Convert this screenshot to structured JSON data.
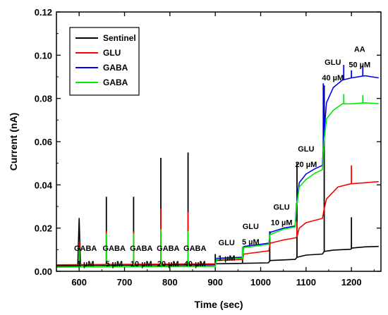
{
  "chart_data": {
    "type": "line",
    "xlabel": "Time (sec)",
    "ylabel": "Current (nA)",
    "xlim": [
      550,
      1265
    ],
    "ylim": [
      0.0,
      0.12
    ],
    "x_ticks": [
      600,
      700,
      800,
      900,
      1000,
      1100,
      1200
    ],
    "y_ticks": [
      0.0,
      0.02,
      0.04,
      0.06,
      0.08,
      0.1,
      0.12
    ],
    "y_tick_labels": [
      "0.00",
      "0.02",
      "0.04",
      "0.06",
      "0.08",
      "0.10",
      "0.12"
    ],
    "legend_position": "top-left",
    "series": [
      {
        "name": "Sentinel",
        "color": "#000000",
        "x": [
          550,
          597,
          600,
          603,
          660,
          720,
          780,
          840,
          898,
          902,
          960,
          1017,
          1021,
          1076,
          1080,
          1100,
          1136,
          1140,
          1160,
          1198,
          1202,
          1230,
          1260
        ],
        "y": [
          0.0025,
          0.0025,
          0.0245,
          0.0028,
          0.0028,
          0.0029,
          0.003,
          0.003,
          0.0031,
          0.0035,
          0.0037,
          0.0039,
          0.005,
          0.0055,
          0.0065,
          0.0075,
          0.008,
          0.0092,
          0.0098,
          0.0102,
          0.0108,
          0.0113,
          0.0115
        ],
        "spikes": [
          {
            "x": 600,
            "y": 0.0245
          },
          {
            "x": 660,
            "y": 0.0345
          },
          {
            "x": 720,
            "y": 0.0345
          },
          {
            "x": 780,
            "y": 0.0525
          },
          {
            "x": 840,
            "y": 0.055
          },
          {
            "x": 900,
            "y": 0.008
          },
          {
            "x": 960,
            "y": 0.0105
          },
          {
            "x": 1020,
            "y": 0.0185
          },
          {
            "x": 1080,
            "y": 0.05
          },
          {
            "x": 1140,
            "y": 0.086
          },
          {
            "x": 1200,
            "y": 0.025
          }
        ]
      },
      {
        "name": "GLU",
        "color": "#ff0000",
        "x": [
          550,
          900,
          903,
          960,
          963,
          1018,
          1021,
          1050,
          1077,
          1080,
          1085,
          1100,
          1136,
          1140,
          1145,
          1170,
          1198,
          1230,
          1260
        ],
        "y": [
          0.003,
          0.0035,
          0.005,
          0.0055,
          0.008,
          0.0095,
          0.013,
          0.0145,
          0.0155,
          0.016,
          0.02,
          0.0225,
          0.0245,
          0.029,
          0.0335,
          0.039,
          0.0405,
          0.041,
          0.0415
        ],
        "spikes": [
          {
            "x": 600,
            "y": 0.0135
          },
          {
            "x": 660,
            "y": 0.0185
          },
          {
            "x": 720,
            "y": 0.0185
          },
          {
            "x": 780,
            "y": 0.029
          },
          {
            "x": 840,
            "y": 0.0275
          },
          {
            "x": 1080,
            "y": 0.023
          },
          {
            "x": 1200,
            "y": 0.049
          }
        ]
      },
      {
        "name": "GABA",
        "color": "#0000ff",
        "x": [
          550,
          900,
          903,
          960,
          963,
          1000,
          1018,
          1021,
          1050,
          1076,
          1079,
          1085,
          1100,
          1120,
          1136,
          1140,
          1145,
          1160,
          1180,
          1200,
          1230,
          1260
        ],
        "y": [
          0.002,
          0.0025,
          0.006,
          0.0065,
          0.0115,
          0.0125,
          0.013,
          0.018,
          0.02,
          0.021,
          0.031,
          0.041,
          0.045,
          0.0475,
          0.049,
          0.065,
          0.078,
          0.085,
          0.0885,
          0.0895,
          0.0905,
          0.0895
        ],
        "spikes": [
          {
            "x": 1138,
            "y": 0.087
          },
          {
            "x": 1183,
            "y": 0.0955
          },
          {
            "x": 1200,
            "y": 0.093
          },
          {
            "x": 1225,
            "y": 0.0955
          }
        ]
      },
      {
        "name": "GABA",
        "color": "#00ee00",
        "x": [
          550,
          900,
          903,
          960,
          963,
          1000,
          1018,
          1021,
          1050,
          1076,
          1079,
          1085,
          1100,
          1120,
          1136,
          1140,
          1145,
          1160,
          1180,
          1200,
          1230,
          1260
        ],
        "y": [
          0.002,
          0.0023,
          0.0055,
          0.006,
          0.011,
          0.012,
          0.0125,
          0.017,
          0.0195,
          0.0205,
          0.0295,
          0.039,
          0.0425,
          0.0455,
          0.047,
          0.061,
          0.0705,
          0.0745,
          0.0775,
          0.0775,
          0.078,
          0.0775
        ],
        "spikes": [
          {
            "x": 600,
            "y": 0.011
          },
          {
            "x": 660,
            "y": 0.0175
          },
          {
            "x": 720,
            "y": 0.0175
          },
          {
            "x": 780,
            "y": 0.0195
          },
          {
            "x": 840,
            "y": 0.0185
          },
          {
            "x": 960,
            "y": 0.0115
          },
          {
            "x": 1080,
            "y": 0.0325
          },
          {
            "x": 1183,
            "y": 0.082
          },
          {
            "x": 1225,
            "y": 0.0815
          }
        ]
      }
    ],
    "annotations": [
      {
        "lines": [
          "GABA",
          "1 µM"
        ],
        "x": 614,
        "y": 0.0095
      },
      {
        "lines": [
          "GABA",
          "5 µM"
        ],
        "x": 677,
        "y": 0.0095
      },
      {
        "lines": [
          "GABA",
          "10 µM"
        ],
        "x": 737,
        "y": 0.0095
      },
      {
        "lines": [
          "GABA",
          "20 µM"
        ],
        "x": 796,
        "y": 0.0095
      },
      {
        "lines": [
          "GABA",
          "40 µM"
        ],
        "x": 855,
        "y": 0.0095
      },
      {
        "lines": [
          "GLU",
          "1 µM"
        ],
        "x": 925,
        "y": 0.012
      },
      {
        "lines": [
          "GLU",
          "5 µM"
        ],
        "x": 978,
        "y": 0.0195
      },
      {
        "lines": [
          "GLU",
          "10 µM"
        ],
        "x": 1046,
        "y": 0.0285
      },
      {
        "lines": [
          "GLU",
          "20 µM"
        ],
        "x": 1100,
        "y": 0.0555
      },
      {
        "lines": [
          "GLU",
          "40 µM"
        ],
        "x": 1159,
        "y": 0.0955
      },
      {
        "lines": [
          "AA",
          "50 µM"
        ],
        "x": 1218,
        "y": 0.1015
      }
    ]
  }
}
